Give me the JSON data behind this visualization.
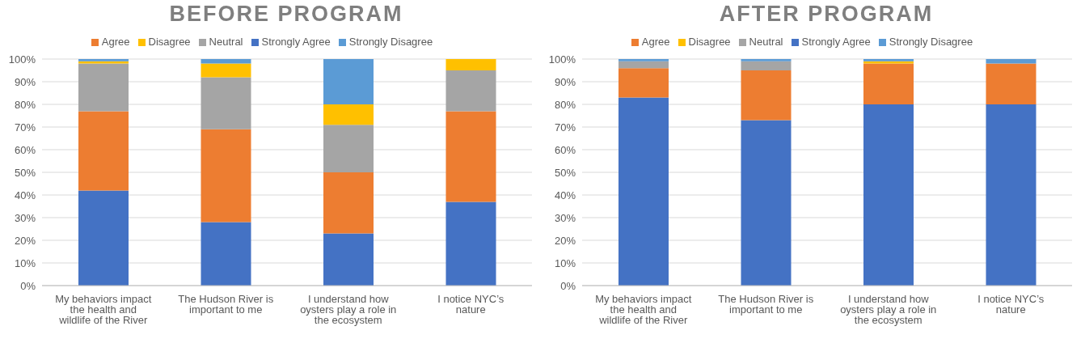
{
  "chart_data": [
    {
      "type": "bar",
      "title": "BEFORE PROGRAM",
      "stacked": true,
      "categories": [
        "My behaviors impact the health and wildlife of the River",
        "The Hudson River is important to me",
        "I understand how oysters play a role in the ecosystem",
        "I notice NYC’s nature"
      ],
      "series": [
        {
          "name": "Strongly Agree",
          "color": "#4472c4",
          "values": [
            42,
            28,
            23,
            37
          ]
        },
        {
          "name": "Agree",
          "color": "#ed7d31",
          "values": [
            35,
            41,
            27,
            40
          ]
        },
        {
          "name": "Neutral",
          "color": "#a5a5a5",
          "values": [
            21,
            23,
            21,
            18
          ]
        },
        {
          "name": "Disagree",
          "color": "#ffc000",
          "values": [
            1,
            6,
            9,
            5
          ]
        },
        {
          "name": "Strongly Disagree",
          "color": "#5b9bd5",
          "values": [
            1,
            2,
            20,
            0
          ]
        }
      ],
      "ylim": [
        0,
        100
      ],
      "yticks": [
        {
          "value": 0,
          "label": "0%"
        },
        {
          "value": 10,
          "label": "10%"
        },
        {
          "value": 20,
          "label": "20%"
        },
        {
          "value": 30,
          "label": "30%"
        },
        {
          "value": 40,
          "label": "40%"
        },
        {
          "value": 50,
          "label": "50%"
        },
        {
          "value": 60,
          "label": "60%"
        },
        {
          "value": 70,
          "label": "70%"
        },
        {
          "value": 80,
          "label": "80%"
        },
        {
          "value": 90,
          "label": "90%"
        },
        {
          "value": 100,
          "label": "100%"
        }
      ],
      "grid": "y",
      "legend": "top"
    },
    {
      "type": "bar",
      "title": "AFTER PROGRAM",
      "stacked": true,
      "categories": [
        "My behaviors impact the health and wildlife of the River",
        "The Hudson River is important to me",
        "I understand how oysters play a role in the ecosystem",
        "I notice NYC’s nature"
      ],
      "series": [
        {
          "name": "Strongly Agree",
          "color": "#4472c4",
          "values": [
            83,
            73,
            80,
            80
          ]
        },
        {
          "name": "Agree",
          "color": "#ed7d31",
          "values": [
            13,
            22,
            18,
            18
          ]
        },
        {
          "name": "Neutral",
          "color": "#a5a5a5",
          "values": [
            3,
            4,
            0,
            0
          ]
        },
        {
          "name": "Disagree",
          "color": "#ffc000",
          "values": [
            0,
            0,
            1,
            0
          ]
        },
        {
          "name": "Strongly Disagree",
          "color": "#5b9bd5",
          "values": [
            1,
            1,
            1,
            2
          ]
        }
      ],
      "ylim": [
        0,
        100
      ],
      "yticks": [
        {
          "value": 0,
          "label": "0%"
        },
        {
          "value": 10,
          "label": "10%"
        },
        {
          "value": 20,
          "label": "20%"
        },
        {
          "value": 30,
          "label": "30%"
        },
        {
          "value": 40,
          "label": "40%"
        },
        {
          "value": 50,
          "label": "50%"
        },
        {
          "value": 60,
          "label": "60%"
        },
        {
          "value": 70,
          "label": "70%"
        },
        {
          "value": 80,
          "label": "80%"
        },
        {
          "value": 90,
          "label": "90%"
        },
        {
          "value": 100,
          "label": "100%"
        }
      ],
      "grid": "y",
      "legend": "top"
    }
  ]
}
